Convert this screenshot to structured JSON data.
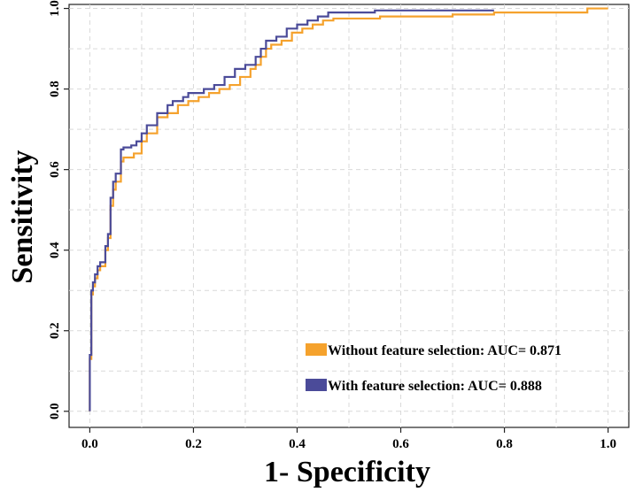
{
  "chart_data": {
    "type": "line",
    "title": "",
    "xlabel": "1- Specificity",
    "ylabel": "Sensitivity",
    "xlim": [
      -0.04,
      1.04
    ],
    "ylim": [
      -0.04,
      1.01
    ],
    "xticks": [
      "0.0",
      "0.2",
      "0.4",
      "0.6",
      "0.8",
      "1.0"
    ],
    "yticks": [
      "0.0",
      "0.2",
      "0.4",
      "0.6",
      "0.8",
      "1.0"
    ],
    "grid": true,
    "legend_position": "bottom-right",
    "series": [
      {
        "name": "Without feature selection: AUC= 0.871",
        "color": "#f5a22d",
        "x": [
          0.0,
          0.0,
          0.003,
          0.003,
          0.006,
          0.006,
          0.01,
          0.01,
          0.015,
          0.015,
          0.02,
          0.02,
          0.03,
          0.03,
          0.035,
          0.035,
          0.04,
          0.04,
          0.045,
          0.045,
          0.05,
          0.05,
          0.06,
          0.06,
          0.065,
          0.065,
          0.085,
          0.085,
          0.1,
          0.1,
          0.11,
          0.11,
          0.13,
          0.13,
          0.15,
          0.15,
          0.17,
          0.17,
          0.19,
          0.19,
          0.21,
          0.21,
          0.23,
          0.23,
          0.25,
          0.25,
          0.27,
          0.27,
          0.29,
          0.29,
          0.31,
          0.31,
          0.32,
          0.32,
          0.33,
          0.33,
          0.34,
          0.34,
          0.35,
          0.35,
          0.37,
          0.37,
          0.39,
          0.39,
          0.41,
          0.41,
          0.43,
          0.43,
          0.45,
          0.45,
          0.47,
          0.47,
          0.56,
          0.56,
          0.7,
          0.7,
          0.78,
          0.78,
          0.96,
          0.96,
          1.0
        ],
        "y": [
          0.0,
          0.13,
          0.13,
          0.29,
          0.29,
          0.31,
          0.31,
          0.33,
          0.33,
          0.35,
          0.35,
          0.36,
          0.36,
          0.4,
          0.4,
          0.43,
          0.43,
          0.51,
          0.51,
          0.55,
          0.55,
          0.57,
          0.57,
          0.62,
          0.62,
          0.63,
          0.63,
          0.64,
          0.64,
          0.67,
          0.67,
          0.69,
          0.69,
          0.73,
          0.73,
          0.74,
          0.74,
          0.76,
          0.76,
          0.77,
          0.77,
          0.78,
          0.78,
          0.79,
          0.79,
          0.8,
          0.8,
          0.81,
          0.81,
          0.83,
          0.83,
          0.85,
          0.85,
          0.86,
          0.86,
          0.88,
          0.88,
          0.9,
          0.9,
          0.91,
          0.91,
          0.92,
          0.92,
          0.94,
          0.94,
          0.95,
          0.95,
          0.96,
          0.96,
          0.97,
          0.97,
          0.975,
          0.975,
          0.98,
          0.98,
          0.985,
          0.985,
          0.99,
          0.99,
          1.0,
          1.0
        ]
      },
      {
        "name": "With feature selection: AUC= 0.888",
        "color": "#4b4b99",
        "x": [
          0.0,
          0.0,
          0.003,
          0.003,
          0.006,
          0.006,
          0.01,
          0.01,
          0.015,
          0.015,
          0.02,
          0.02,
          0.03,
          0.03,
          0.035,
          0.035,
          0.04,
          0.04,
          0.045,
          0.045,
          0.05,
          0.05,
          0.06,
          0.06,
          0.065,
          0.065,
          0.08,
          0.08,
          0.09,
          0.09,
          0.1,
          0.1,
          0.11,
          0.11,
          0.13,
          0.13,
          0.15,
          0.15,
          0.16,
          0.16,
          0.18,
          0.18,
          0.19,
          0.19,
          0.22,
          0.22,
          0.24,
          0.24,
          0.26,
          0.26,
          0.28,
          0.28,
          0.3,
          0.3,
          0.32,
          0.32,
          0.33,
          0.33,
          0.34,
          0.34,
          0.36,
          0.36,
          0.38,
          0.38,
          0.4,
          0.4,
          0.42,
          0.42,
          0.44,
          0.44,
          0.46,
          0.46,
          0.55,
          0.55,
          0.78
        ],
        "y": [
          0.0,
          0.14,
          0.14,
          0.3,
          0.3,
          0.32,
          0.32,
          0.34,
          0.34,
          0.36,
          0.36,
          0.37,
          0.37,
          0.41,
          0.41,
          0.44,
          0.44,
          0.53,
          0.53,
          0.57,
          0.57,
          0.59,
          0.59,
          0.65,
          0.65,
          0.655,
          0.655,
          0.66,
          0.66,
          0.67,
          0.67,
          0.69,
          0.69,
          0.71,
          0.71,
          0.74,
          0.74,
          0.76,
          0.76,
          0.77,
          0.77,
          0.78,
          0.78,
          0.79,
          0.79,
          0.8,
          0.8,
          0.81,
          0.81,
          0.83,
          0.83,
          0.85,
          0.85,
          0.86,
          0.86,
          0.88,
          0.88,
          0.9,
          0.9,
          0.92,
          0.92,
          0.93,
          0.93,
          0.95,
          0.95,
          0.96,
          0.96,
          0.97,
          0.97,
          0.98,
          0.98,
          0.99,
          0.99,
          0.995,
          0.995
        ]
      }
    ]
  }
}
